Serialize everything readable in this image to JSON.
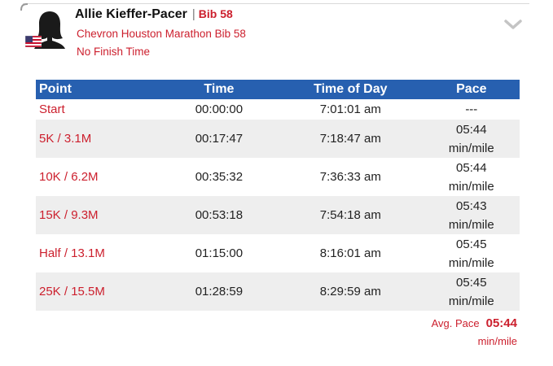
{
  "athlete": {
    "name": "Allie Kieffer-Pacer",
    "separator": "|",
    "bib": "Bib 58",
    "race": "Chevron Houston Marathon Bib 58",
    "finish_status": "No Finish Time"
  },
  "splits": {
    "columns": [
      "Point",
      "Time",
      "Time of Day",
      "Pace"
    ],
    "rows": [
      {
        "point": "Start",
        "time": "00:00:00",
        "tod": "7:01:01 am",
        "pace": "---",
        "unit": ""
      },
      {
        "point": "5K / 3.1M",
        "time": "00:17:47",
        "tod": "7:18:47 am",
        "pace": "05:44",
        "unit": "min/mile"
      },
      {
        "point": "10K / 6.2M",
        "time": "00:35:32",
        "tod": "7:36:33 am",
        "pace": "05:44",
        "unit": "min/mile"
      },
      {
        "point": "15K / 9.3M",
        "time": "00:53:18",
        "tod": "7:54:18 am",
        "pace": "05:43",
        "unit": "min/mile"
      },
      {
        "point": "Half / 13.1M",
        "time": "01:15:00",
        "tod": "8:16:01 am",
        "pace": "05:45",
        "unit": "min/mile"
      },
      {
        "point": "25K / 15.5M",
        "time": "01:28:59",
        "tod": "8:29:59 am",
        "pace": "05:45",
        "unit": "min/mile"
      }
    ]
  },
  "average": {
    "label": "Avg. Pace",
    "value": "05:44",
    "unit": "min/mile"
  },
  "colors": {
    "accent": "#cc1f2d",
    "header": "#2760b0",
    "shade": "#eeeeee"
  },
  "icons": {
    "avatar": "person-silhouette-icon",
    "flag": "us-flag-icon",
    "expand": "chevron-down-icon"
  }
}
